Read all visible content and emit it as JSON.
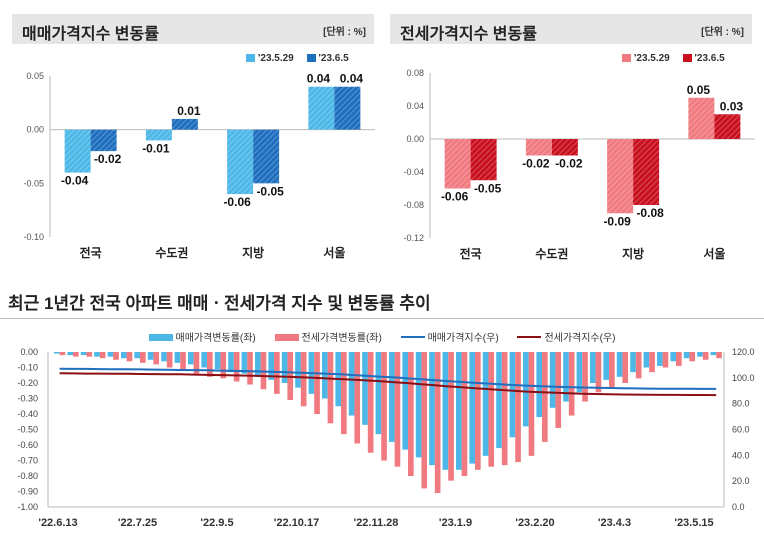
{
  "colors": {
    "sale_old": "#4db8e8",
    "sale_new": "#1f6fbf",
    "jeonse_old": "#f07a80",
    "jeonse_new": "#c8101e",
    "sale_index_line": "#1f6fbf",
    "jeonse_index_line": "#8b1016"
  },
  "chart_data": [
    {
      "type": "bar",
      "title": "매매가격지수 변동률",
      "unit_label": "[단위 : %]",
      "categories": [
        "전국",
        "수도권",
        "지방",
        "서울"
      ],
      "series": [
        {
          "name": "'23.5.29",
          "values": [
            -0.04,
            -0.01,
            -0.06,
            0.04
          ]
        },
        {
          "name": "'23.6.5",
          "values": [
            -0.02,
            0.01,
            -0.05,
            0.04
          ]
        }
      ],
      "labels": [
        [
          "-0.04",
          "-0.01",
          "-0.06",
          "0.04"
        ],
        [
          "-0.02",
          "0.01",
          "-0.05",
          "0.04"
        ]
      ],
      "yticks": [
        "0.05",
        "0.00",
        "-0.05",
        "-0.10"
      ],
      "ytick_values": [
        0.05,
        0.0,
        -0.05,
        -0.1
      ],
      "ylim": [
        -0.1,
        0.05
      ]
    },
    {
      "type": "bar",
      "title": "전세가격지수 변동률",
      "unit_label": "[단위 : %]",
      "categories": [
        "전국",
        "수도권",
        "지방",
        "서울"
      ],
      "series": [
        {
          "name": "'23.5.29",
          "values": [
            -0.06,
            -0.02,
            -0.09,
            0.05
          ]
        },
        {
          "name": "'23.6.5",
          "values": [
            -0.05,
            -0.02,
            -0.08,
            0.03
          ]
        }
      ],
      "labels": [
        [
          "-0.06",
          "-0.02",
          "-0.09",
          "0.05"
        ],
        [
          "-0.05",
          "-0.02",
          "-0.08",
          "0.03"
        ]
      ],
      "yticks": [
        "0.08",
        "0.04",
        "0.00",
        "-0.04",
        "-0.08",
        "-0.12"
      ],
      "ytick_values": [
        0.08,
        0.04,
        0.0,
        -0.04,
        -0.08,
        -0.12
      ],
      "ylim": [
        -0.12,
        0.08
      ]
    },
    {
      "type": "bar+line",
      "title": "최근 1년간 전국 아파트 매매ㆍ전세가격 지수 및 변동률 추이",
      "x_labels": [
        "'22.6.13",
        "'22.7.25",
        "'22.9.5",
        "'22.10.17",
        "'22.11.28",
        "'23.1.9",
        "'23.2.20",
        "'23.4.3",
        "'23.5.15"
      ],
      "left_axis_ticks": [
        "0.00",
        "-0.10",
        "-0.20",
        "-0.30",
        "-0.40",
        "-0.50",
        "-0.60",
        "-0.70",
        "-0.80",
        "-0.90",
        "-1.00"
      ],
      "left_axis_values": [
        0.0,
        -0.1,
        -0.2,
        -0.3,
        -0.4,
        -0.5,
        -0.6,
        -0.7,
        -0.8,
        -0.9,
        -1.0
      ],
      "right_axis_ticks": [
        "120.0",
        "100.0",
        "80.0",
        "60.0",
        "40.0",
        "20.0",
        "0.0"
      ],
      "right_axis_values": [
        120,
        100,
        80,
        60,
        40,
        20,
        0
      ],
      "left_ylim": [
        -1.0,
        0.0
      ],
      "right_ylim": [
        0.0,
        120.0
      ],
      "series": [
        {
          "name": "매매가격변동률(좌)",
          "kind": "bar",
          "values": [
            -0.01,
            -0.02,
            -0.02,
            -0.03,
            -0.03,
            -0.04,
            -0.04,
            -0.05,
            -0.06,
            -0.07,
            -0.08,
            -0.1,
            -0.11,
            -0.13,
            -0.14,
            -0.16,
            -0.18,
            -0.2,
            -0.23,
            -0.27,
            -0.3,
            -0.35,
            -0.41,
            -0.47,
            -0.53,
            -0.58,
            -0.63,
            -0.68,
            -0.73,
            -0.76,
            -0.76,
            -0.72,
            -0.67,
            -0.62,
            -0.55,
            -0.48,
            -0.42,
            -0.36,
            -0.32,
            -0.26,
            -0.2,
            -0.18,
            -0.16,
            -0.13,
            -0.1,
            -0.09,
            -0.06,
            -0.04,
            -0.03,
            -0.02
          ]
        },
        {
          "name": "전세가격변동률(좌)",
          "kind": "bar",
          "values": [
            -0.02,
            -0.03,
            -0.03,
            -0.04,
            -0.05,
            -0.06,
            -0.07,
            -0.08,
            -0.1,
            -0.12,
            -0.14,
            -0.16,
            -0.17,
            -0.19,
            -0.21,
            -0.24,
            -0.27,
            -0.31,
            -0.35,
            -0.4,
            -0.46,
            -0.53,
            -0.59,
            -0.65,
            -0.7,
            -0.74,
            -0.8,
            -0.88,
            -0.91,
            -0.83,
            -0.8,
            -0.76,
            -0.74,
            -0.73,
            -0.71,
            -0.67,
            -0.58,
            -0.49,
            -0.41,
            -0.32,
            -0.26,
            -0.23,
            -0.2,
            -0.17,
            -0.13,
            -0.1,
            -0.09,
            -0.06,
            -0.05,
            -0.04
          ]
        },
        {
          "name": "매매가격지수(우)",
          "kind": "line",
          "values": [
            107.0,
            106.9,
            106.9,
            106.8,
            106.7,
            106.6,
            106.5,
            106.4,
            106.3,
            106.1,
            106.0,
            105.8,
            105.6,
            105.4,
            105.2,
            104.9,
            104.6,
            104.3,
            104.0,
            103.6,
            103.2,
            102.7,
            102.1,
            101.5,
            100.9,
            100.3,
            99.6,
            98.9,
            98.2,
            97.5,
            96.8,
            96.1,
            95.5,
            94.9,
            94.4,
            93.9,
            93.5,
            93.1,
            92.8,
            92.5,
            92.3,
            92.1,
            91.9,
            91.8,
            91.7,
            91.6,
            91.5,
            91.5,
            91.4,
            91.4
          ]
        },
        {
          "name": "전세가격지수(우)",
          "kind": "line",
          "values": [
            103.5,
            103.4,
            103.3,
            103.3,
            103.2,
            103.1,
            103.0,
            102.9,
            102.8,
            102.7,
            102.5,
            102.3,
            102.1,
            101.9,
            101.7,
            101.4,
            101.1,
            100.8,
            100.4,
            100.0,
            99.5,
            99.0,
            98.5,
            97.9,
            97.3,
            96.6,
            95.9,
            95.1,
            94.2,
            93.4,
            92.7,
            92.0,
            91.3,
            90.6,
            89.9,
            89.3,
            88.8,
            88.4,
            88.0,
            87.7,
            87.5,
            87.3,
            87.1,
            87.0,
            86.9,
            86.8,
            86.8,
            86.7,
            86.7,
            86.6
          ]
        }
      ]
    }
  ]
}
